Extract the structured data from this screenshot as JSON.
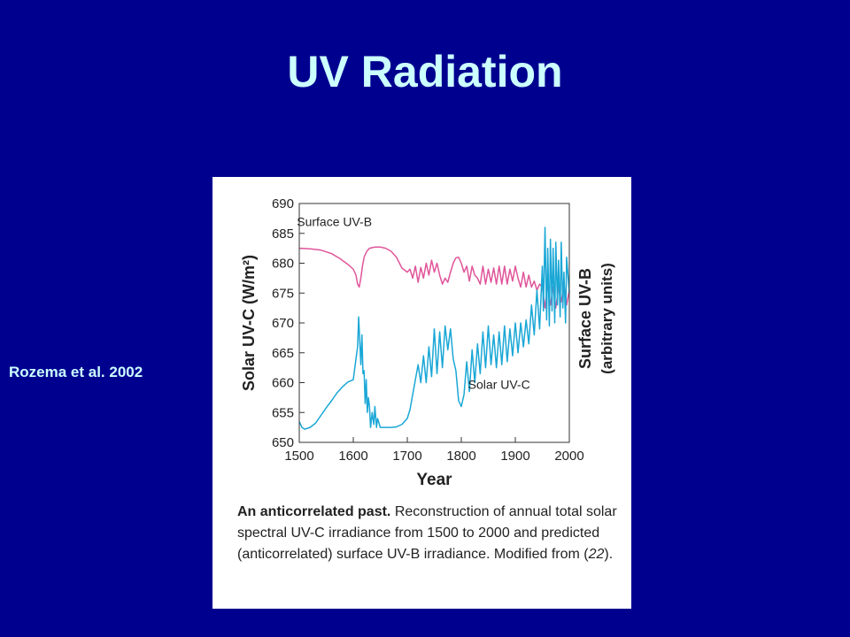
{
  "slide": {
    "title": "UV Radiation",
    "citation": "Rozema et al. 2002"
  },
  "caption": {
    "bold": "An anticorrelated past.",
    "body": "Reconstruction of an­nual total solar spectral UV-C irradiance from 1500 to 2000 and predicted (anticorrelated) surface UV-B irradiance. Modified from (",
    "ref": "22",
    "end": ")."
  },
  "colors": {
    "background": "#00008f",
    "title_text": "#ccffff",
    "uvc_line": "#1aa7d6",
    "uvb_line": "#e0559a"
  },
  "chart_data": {
    "type": "line",
    "xlabel": "Year",
    "ylabel_left": "Solar UV-C (W/m²)",
    "ylabel_right": "Surface UV-B",
    "ylabel_right2": "(arbitrary units)",
    "xlim": [
      1500,
      2000
    ],
    "ylim": [
      650,
      690
    ],
    "xticks": [
      1500,
      1600,
      1700,
      1800,
      1900,
      2000
    ],
    "yticks": [
      650,
      655,
      660,
      665,
      670,
      675,
      680,
      685,
      690
    ],
    "grid": false,
    "series": [
      {
        "name": "Surface UV-B",
        "color": "#e0559a",
        "x": [
          1500,
          1520,
          1540,
          1560,
          1575,
          1590,
          1600,
          1605,
          1608,
          1611,
          1614,
          1617,
          1620,
          1625,
          1630,
          1640,
          1650,
          1660,
          1670,
          1680,
          1690,
          1700,
          1705,
          1710,
          1715,
          1720,
          1725,
          1730,
          1735,
          1740,
          1745,
          1750,
          1755,
          1760,
          1765,
          1770,
          1775,
          1780,
          1785,
          1790,
          1795,
          1800,
          1805,
          1810,
          1815,
          1820,
          1825,
          1830,
          1835,
          1840,
          1845,
          1850,
          1855,
          1860,
          1865,
          1870,
          1875,
          1880,
          1885,
          1890,
          1895,
          1900,
          1905,
          1910,
          1915,
          1920,
          1925,
          1930,
          1935,
          1940,
          1945,
          1950,
          1955,
          1960,
          1965,
          1970,
          1975,
          1980,
          1985,
          1990,
          1995,
          2000
        ],
        "y": [
          682.5,
          682.4,
          682.2,
          681.6,
          680.8,
          679.8,
          679.0,
          678.0,
          676.5,
          676.0,
          677.5,
          679.5,
          681.0,
          682.0,
          682.5,
          682.7,
          682.7,
          682.5,
          682.0,
          681.0,
          679.2,
          678.5,
          679.0,
          677.5,
          679.5,
          676.8,
          679.3,
          677.5,
          680.0,
          678.0,
          680.5,
          678.5,
          680.0,
          678.0,
          676.5,
          677.5,
          676.8,
          678.5,
          680.0,
          680.9,
          681.0,
          680.0,
          678.5,
          679.5,
          677.0,
          679.5,
          678.0,
          677.5,
          676.5,
          679.5,
          676.5,
          679.0,
          676.8,
          679.2,
          676.5,
          679.5,
          676.5,
          679.5,
          676.5,
          679.0,
          677.0,
          679.5,
          677.5,
          676.0,
          678.5,
          676.0,
          678.0,
          676.0,
          677.0,
          675.5,
          676.5,
          676.0,
          672.5,
          676.5,
          673.0,
          676.0,
          672.5,
          676.0,
          673.5,
          676.5,
          673.0,
          675.5
        ]
      },
      {
        "name": "Solar UV-C",
        "color": "#1aa7d6",
        "x": [
          1500,
          1505,
          1510,
          1520,
          1530,
          1540,
          1550,
          1560,
          1570,
          1580,
          1590,
          1600,
          1605,
          1608,
          1610,
          1612,
          1614,
          1616,
          1618,
          1620,
          1622,
          1624,
          1626,
          1628,
          1630,
          1632,
          1635,
          1638,
          1640,
          1643,
          1645,
          1650,
          1660,
          1670,
          1680,
          1690,
          1700,
          1705,
          1710,
          1715,
          1720,
          1725,
          1730,
          1735,
          1740,
          1745,
          1750,
          1755,
          1760,
          1765,
          1770,
          1775,
          1780,
          1785,
          1790,
          1795,
          1800,
          1805,
          1810,
          1815,
          1820,
          1825,
          1830,
          1835,
          1840,
          1845,
          1850,
          1855,
          1860,
          1865,
          1870,
          1875,
          1880,
          1885,
          1890,
          1895,
          1900,
          1905,
          1910,
          1915,
          1920,
          1925,
          1930,
          1935,
          1940,
          1945,
          1950,
          1952,
          1955,
          1958,
          1960,
          1963,
          1965,
          1968,
          1970,
          1973,
          1975,
          1978,
          1980,
          1983,
          1985,
          1988,
          1990,
          1993,
          1995,
          2000
        ],
        "y": [
          653.5,
          652.5,
          652.2,
          652.5,
          653.2,
          654.5,
          655.8,
          657.0,
          658.3,
          659.3,
          660.1,
          660.5,
          664.0,
          666.0,
          671.0,
          667.0,
          663.0,
          668.0,
          661.5,
          662.0,
          656.5,
          660.5,
          655.0,
          657.5,
          656.0,
          652.5,
          655.0,
          653.0,
          656.0,
          652.5,
          654.0,
          652.5,
          652.5,
          652.5,
          652.6,
          653.0,
          654.0,
          655.5,
          658.0,
          660.5,
          663.0,
          660.0,
          664.5,
          660.0,
          666.0,
          661.0,
          669.0,
          661.5,
          668.5,
          662.5,
          669.5,
          665.5,
          669.0,
          664.0,
          662.0,
          657.0,
          656.0,
          658.0,
          663.5,
          658.5,
          665.5,
          660.0,
          666.5,
          661.5,
          668.5,
          662.5,
          669.5,
          663.0,
          668.0,
          662.5,
          668.5,
          663.0,
          669.5,
          663.5,
          669.0,
          664.5,
          670.0,
          665.0,
          670.0,
          666.0,
          670.5,
          666.5,
          673.0,
          668.0,
          675.5,
          669.0,
          679.5,
          672.0,
          686.0,
          670.5,
          682.5,
          669.5,
          684.0,
          672.0,
          682.5,
          670.0,
          683.5,
          673.0,
          680.5,
          671.0,
          683.5,
          672.5,
          678.5,
          670.0,
          681.0,
          675.0
        ]
      }
    ]
  }
}
